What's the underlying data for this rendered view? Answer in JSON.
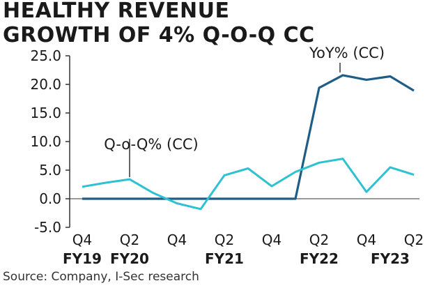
{
  "title_line1": "HEALTHY REVENUE",
  "title_line2": "GROWTH OF 4% Q-O-Q CC",
  "source": "Source: Company, I-Sec research",
  "colors": {
    "yoy": "#1f5d86",
    "qoq": "#2ec1d1",
    "axis": "#333333"
  },
  "chart_data": {
    "type": "line",
    "ylim": [
      -5.0,
      25.0
    ],
    "yticks": [
      "-5.0",
      "0.0",
      "5.0",
      "10.0",
      "15.0",
      "20.0",
      "25.0"
    ],
    "ytick_values": [
      -5,
      0,
      5,
      10,
      15,
      20,
      25
    ],
    "x_tick_labels": [
      "Q4",
      "Q2",
      "Q4",
      "Q2",
      "Q4",
      "Q2",
      "Q4",
      "Q2"
    ],
    "x_tick_index": [
      0,
      2,
      4,
      6,
      8,
      10,
      12,
      14
    ],
    "fy_labels": [
      "FY19",
      "FY20",
      "FY21",
      "FY22",
      "FY23"
    ],
    "fy_index": [
      0,
      2,
      6,
      10,
      13
    ],
    "points": 15,
    "series": [
      {
        "name": "YoY% (CC)",
        "values": [
          0,
          0,
          0,
          0,
          0,
          0,
          0,
          0,
          0,
          0,
          19.4,
          21.6,
          20.8,
          21.4,
          18.9
        ]
      },
      {
        "name": "Q-o-Q% (CC)",
        "values": [
          2.1,
          2.8,
          3.4,
          1.0,
          -0.8,
          -1.8,
          4.1,
          5.3,
          2.2,
          4.7,
          6.3,
          7.0,
          1.2,
          5.5,
          4.2
        ]
      }
    ],
    "annotations": [
      "YoY% (CC)",
      "Q-o-Q% (CC)"
    ]
  }
}
